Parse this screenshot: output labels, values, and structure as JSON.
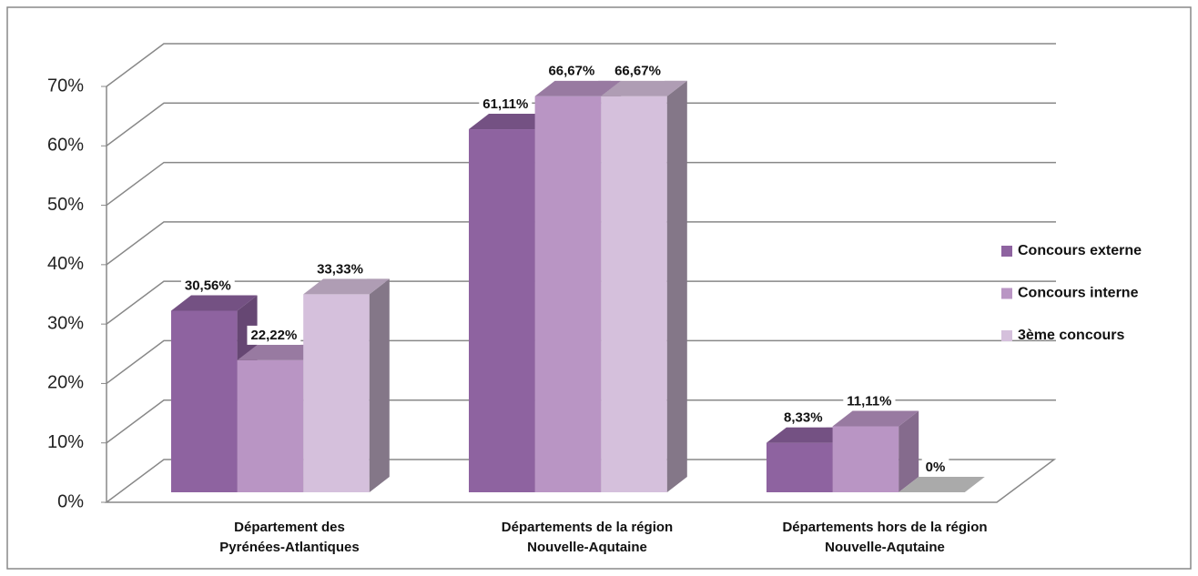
{
  "chart_data": {
    "type": "bar3d",
    "categories": [
      "Département des\nPyrénées-Atlantiques",
      "Départements de la région\nNouvelle-Aqutaine",
      "Départements hors de la région\nNouvelle-Aqutaine"
    ],
    "series": [
      {
        "name": "Concours externe",
        "color": "#8e63a0",
        "values": [
          30.56,
          61.11,
          8.33
        ],
        "value_labels": [
          "30,56%",
          "61,11%",
          "8,33%"
        ]
      },
      {
        "name": "Concours interne",
        "color": "#b995c4",
        "values": [
          22.22,
          66.67,
          11.11
        ],
        "value_labels": [
          "22,22%",
          "66,67%",
          "11,11%"
        ]
      },
      {
        "name": "3ème concours",
        "color": "#d5c0dc",
        "values": [
          33.33,
          66.67,
          0
        ],
        "value_labels": [
          "33,33%",
          "66,67%",
          "0%"
        ]
      }
    ],
    "ylim": [
      0,
      70
    ],
    "yticks": [
      {
        "value": 0,
        "label": "0%"
      },
      {
        "value": 10,
        "label": "10%"
      },
      {
        "value": 20,
        "label": "20%"
      },
      {
        "value": 30,
        "label": "30%"
      },
      {
        "value": 40,
        "label": "40%"
      },
      {
        "value": 50,
        "label": "50%"
      },
      {
        "value": 60,
        "label": "60%"
      },
      {
        "value": 70,
        "label": "70%"
      }
    ],
    "grid": true,
    "legend": "right"
  }
}
